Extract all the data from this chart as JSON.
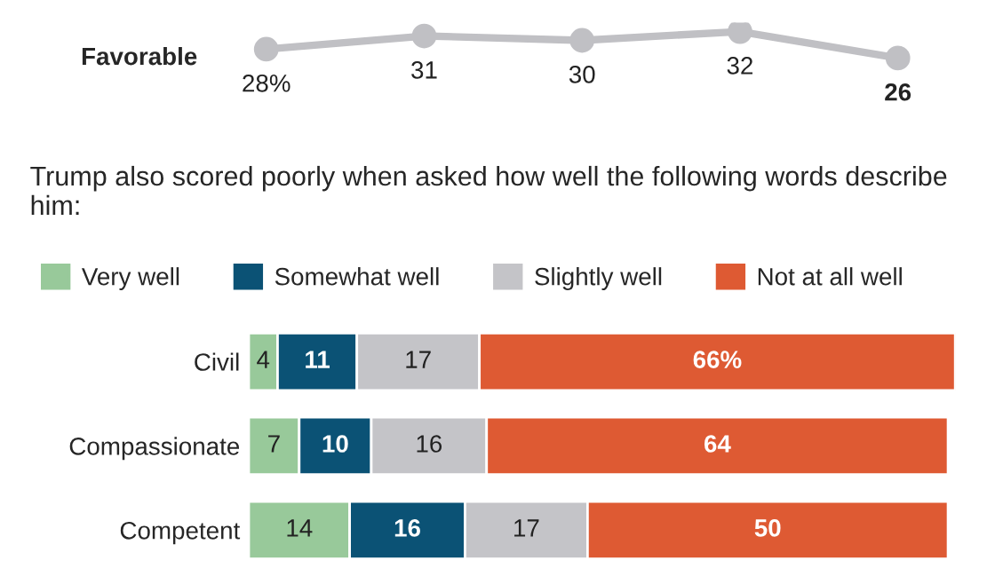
{
  "chart_data": [
    {
      "type": "line",
      "ylabel": "Favorable",
      "categories": [
        null,
        null,
        null,
        null,
        null
      ],
      "marker": "circle",
      "series": [
        {
          "color": "#c0c0c4",
          "values": [
            28,
            31,
            30,
            32,
            26
          ],
          "value_labels": [
            "28%",
            "31",
            "30",
            "32",
            "26"
          ]
        }
      ]
    },
    {
      "type": "bar",
      "orientation": "horizontal",
      "stacked": true,
      "legend": "top",
      "title": "Trump also scored poorly when asked how well the following words describe him:",
      "categories": [
        "Civil",
        "Compassionate",
        "Competent"
      ],
      "series": [
        {
          "name": "Very well",
          "color": "#98c99a",
          "values": [
            4,
            7,
            14
          ],
          "value_labels": [
            "4",
            "7",
            "14"
          ]
        },
        {
          "name": "Somewhat well",
          "color": "#0b5275",
          "values": [
            11,
            10,
            16
          ],
          "value_labels": [
            "11",
            "10",
            "16"
          ]
        },
        {
          "name": "Slightly well",
          "color": "#c4c4c8",
          "values": [
            17,
            16,
            17
          ],
          "value_labels": [
            "17",
            "16",
            "17"
          ]
        },
        {
          "name": "Not at all well",
          "color": "#de5a33",
          "values": [
            66,
            64,
            50
          ],
          "value_labels": [
            "66%",
            "64",
            "50"
          ]
        }
      ]
    }
  ]
}
